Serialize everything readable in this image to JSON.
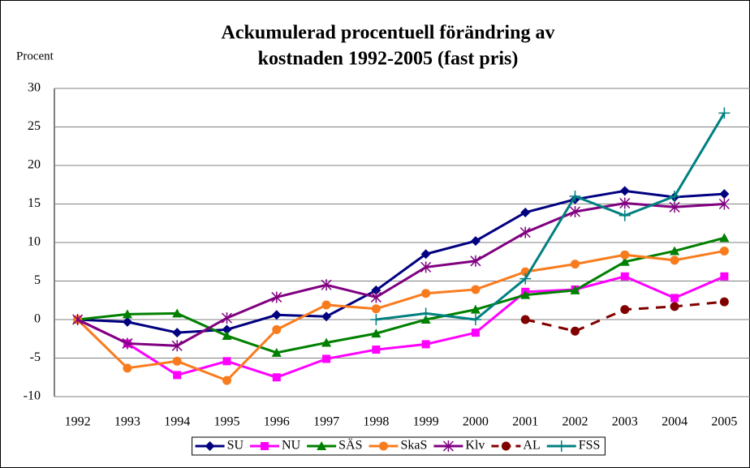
{
  "chart_data": {
    "type": "line",
    "title": "Ackumulerad procentuell förändring av",
    "subtitle": "kostnaden 1992-2005 (fast pris)",
    "y_label": "Procent",
    "categories": [
      "1992",
      "1993",
      "1994",
      "1995",
      "1996",
      "1997",
      "1998",
      "1999",
      "2000",
      "2001",
      "2002",
      "2003",
      "2004",
      "2005"
    ],
    "ylim": [
      -10,
      30
    ],
    "yticks": [
      -10,
      -5,
      0,
      5,
      10,
      15,
      20,
      25,
      30
    ],
    "grid": true,
    "legend": "bottom",
    "series": [
      {
        "name": "SU",
        "color": "#000080",
        "marker": "diamond",
        "values": [
          0,
          -0.3,
          -1.7,
          -1.3,
          0.6,
          0.4,
          3.8,
          8.5,
          10.2,
          13.9,
          15.6,
          16.7,
          15.9,
          16.3
        ]
      },
      {
        "name": "NU",
        "color": "#ff00ff",
        "marker": "square",
        "values": [
          0,
          -3.1,
          -7.2,
          -5.4,
          -7.5,
          -5.1,
          -3.9,
          -3.2,
          -1.7,
          3.6,
          3.9,
          5.6,
          2.8,
          5.6
        ]
      },
      {
        "name": "SÄS",
        "color": "#008000",
        "marker": "triangle",
        "values": [
          0,
          0.7,
          0.8,
          -2.1,
          -4.3,
          -3.0,
          -1.8,
          0.0,
          1.3,
          3.2,
          3.8,
          7.5,
          8.9,
          10.6
        ]
      },
      {
        "name": "SkaS",
        "color": "#f87c1e",
        "marker": "circle",
        "values": [
          0,
          -6.3,
          -5.4,
          -7.9,
          -1.3,
          1.9,
          1.4,
          3.4,
          3.9,
          6.2,
          7.2,
          8.4,
          7.7,
          8.9
        ]
      },
      {
        "name": "Klv",
        "color": "#800080",
        "marker": "star",
        "values": [
          0,
          -3.1,
          -3.4,
          0.2,
          2.9,
          4.5,
          2.9,
          6.8,
          7.6,
          11.3,
          14.0,
          15.1,
          14.6,
          15.0
        ]
      },
      {
        "name": "AL",
        "color": "#800000",
        "marker": "circle",
        "dashed": true,
        "values": [
          null,
          null,
          null,
          null,
          null,
          null,
          null,
          null,
          null,
          0,
          -1.5,
          1.3,
          1.7,
          2.3
        ]
      },
      {
        "name": "FSS",
        "color": "#008080",
        "marker": "plus",
        "values": [
          null,
          null,
          null,
          null,
          null,
          null,
          0,
          0.8,
          0.0,
          5.3,
          16.0,
          13.5,
          16.0,
          26.8
        ]
      }
    ]
  }
}
